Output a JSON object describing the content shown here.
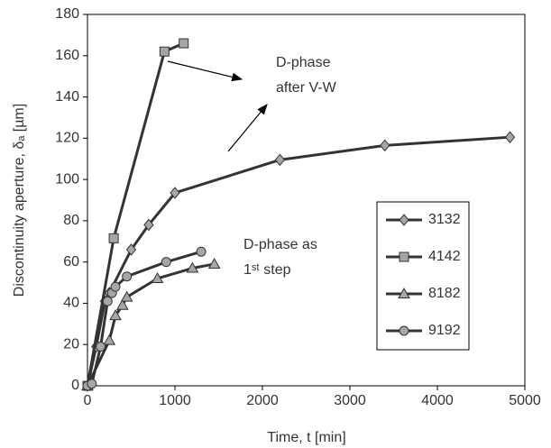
{
  "chart_data": {
    "type": "line",
    "xlabel": "Time, t [min]",
    "ylabel": "Discontinuity aperture, δₐ [µm]",
    "xlim": [
      0,
      5000
    ],
    "xticks": [
      0,
      1000,
      2000,
      3000,
      4000,
      5000
    ],
    "ylim": [
      0,
      180
    ],
    "yticks": [
      0,
      20,
      40,
      60,
      80,
      100,
      120,
      140,
      160,
      180
    ],
    "grid": false,
    "legend": "right",
    "annotations": [
      "D-phase",
      "after V-W",
      "D-phase as",
      "1ˢᵗ step"
    ],
    "series": [
      {
        "name": "3132",
        "color": "#333333",
        "marker": "diamond",
        "x": [
          0,
          100,
          200,
          250,
          500,
          700,
          1000,
          2200,
          3400,
          4830
        ],
        "values": [
          0,
          19,
          41,
          45,
          66,
          78,
          93.5,
          109.5,
          116.5,
          120.5
        ]
      },
      {
        "name": "4142",
        "color": "#333333",
        "marker": "square",
        "x": [
          0,
          300,
          880,
          1100
        ],
        "values": [
          0,
          71.5,
          162,
          166
        ]
      },
      {
        "name": "8182",
        "color": "#333333",
        "marker": "triangle",
        "x": [
          0,
          250,
          320,
          400,
          450,
          800,
          1200,
          1450
        ],
        "values": [
          0,
          22,
          34,
          39,
          43,
          52,
          57,
          59
        ]
      },
      {
        "name": "9192",
        "color": "#333333",
        "marker": "circle",
        "x": [
          0,
          50,
          150,
          230,
          280,
          320,
          450,
          900,
          1300
        ],
        "values": [
          0,
          1,
          19,
          41,
          45,
          48,
          53,
          60,
          65
        ]
      }
    ]
  }
}
